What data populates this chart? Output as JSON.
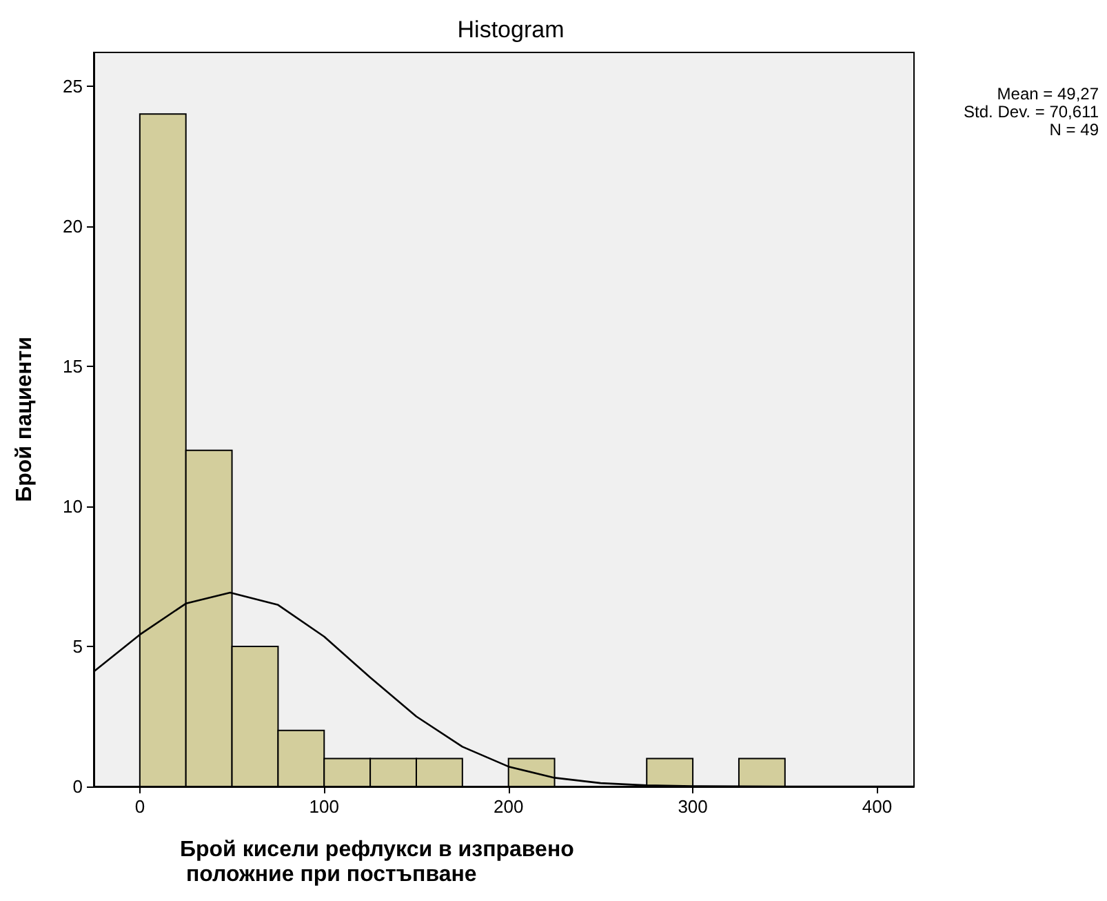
{
  "chart_data": {
    "type": "histogram",
    "title": "Histogram",
    "xlabel": "Брой кисели рефлукси в изправено положние при постъпване",
    "ylabel": "Брой пациенти",
    "annotations": [
      "Mean = 49,27",
      "Std. Dev. = 70,611",
      "N = 49"
    ],
    "series": [
      {
        "type": "histogram",
        "color": "#d3ce9c",
        "bins": [
          0,
          25,
          50,
          75,
          100,
          125,
          150,
          175,
          200,
          225,
          250,
          275,
          300,
          325,
          350
        ],
        "values": [
          24,
          12,
          5,
          2,
          1,
          1,
          1,
          0,
          1,
          0,
          0,
          1,
          0,
          1
        ]
      },
      {
        "type": "line",
        "color": "#000000",
        "x": [
          -25,
          0,
          25,
          49,
          75,
          100,
          125,
          150,
          175,
          200,
          225,
          250,
          275,
          300,
          350,
          420
        ],
        "values": [
          4.1,
          5.42,
          6.53,
          6.92,
          6.48,
          5.35,
          3.89,
          2.5,
          1.42,
          0.71,
          0.31,
          0.12,
          0.04,
          0.01,
          0,
          0
        ]
      }
    ],
    "xlim": [
      -25,
      420
    ],
    "xticks": [
      0,
      100,
      200,
      300,
      400
    ],
    "ylim": [
      0,
      26.2
    ],
    "yticks": [
      0,
      5,
      10,
      15,
      20,
      25
    ],
    "grid": false
  }
}
